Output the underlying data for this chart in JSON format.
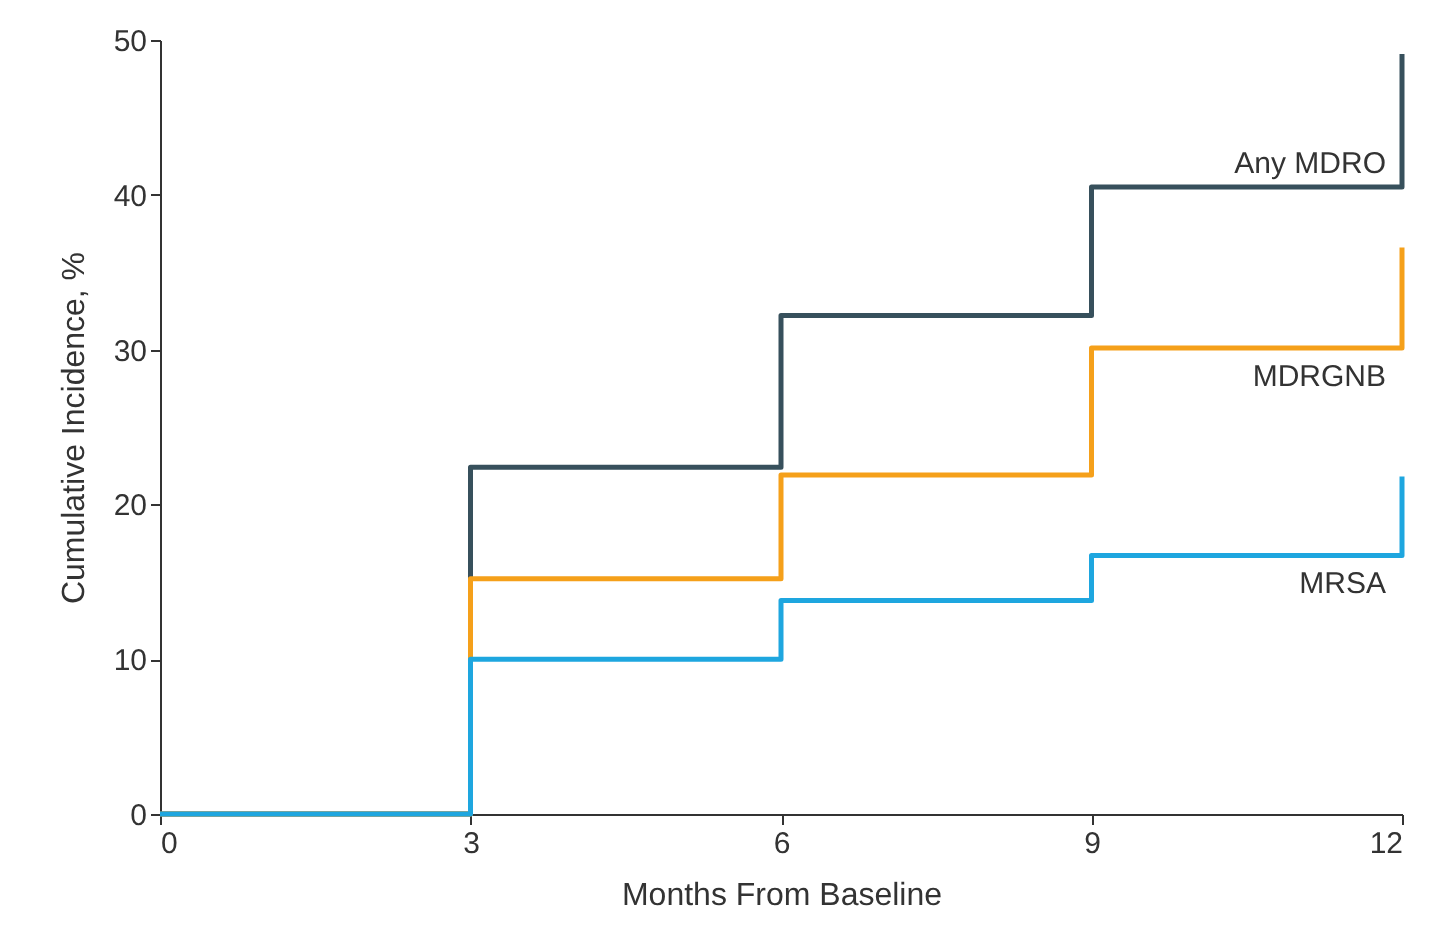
{
  "chart_data": {
    "type": "step",
    "xlabel": "Months From Baseline",
    "ylabel": "Cumulative Incidence, %",
    "x": [
      0,
      3,
      6,
      9,
      12
    ],
    "xlim": [
      0,
      12
    ],
    "xticks": [
      0,
      3,
      6,
      9,
      12
    ],
    "ylim": [
      0,
      50
    ],
    "yticks": [
      0,
      10,
      20,
      30,
      40,
      50
    ],
    "series": [
      {
        "name": "Any MDRO",
        "color": "#37505c",
        "values": [
          0,
          22.4,
          32.2,
          40.5,
          49.1
        ]
      },
      {
        "name": "MDRGNB",
        "color": "#f5a01a",
        "values": [
          0,
          15.2,
          21.9,
          30.1,
          36.6
        ]
      },
      {
        "name": "MRSA",
        "color": "#1ea6df",
        "values": [
          0,
          10,
          13.8,
          16.7,
          21.8
        ]
      }
    ]
  }
}
